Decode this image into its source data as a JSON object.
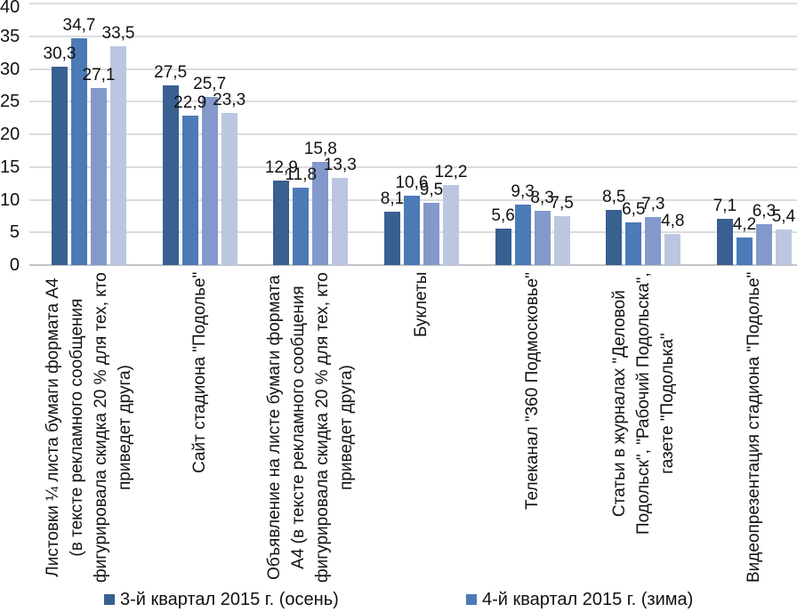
{
  "chart_data": {
    "type": "bar",
    "title": "",
    "ylim": [
      0,
      40
    ],
    "ytick_step": 5,
    "ytick_labels": [
      "0",
      "5",
      "10",
      "15",
      "20",
      "25",
      "30",
      "35",
      "40"
    ],
    "grid": true,
    "legend_position": "bottom",
    "decimal_separator": ",",
    "categories": [
      {
        "lines": [
          "Листовки ¼ листа бумаги формата А4",
          "(в тексте рекламного сообщения",
          "фигурировала скидка 20 % для тех, кто",
          "приведет друга)"
        ]
      },
      {
        "lines": [
          "Сайт стадиона \"Подолье\""
        ]
      },
      {
        "lines": [
          "Объявление на листе бумаги формата",
          "А4 (в тексте рекламного сообщения",
          "фигурировала скидка 20 % для тех, кто",
          "приведет друга)"
        ]
      },
      {
        "lines": [
          "Буклеты"
        ]
      },
      {
        "lines": [
          "Телеканал \"360 Подмосковье\""
        ]
      },
      {
        "lines": [
          "Статьи в журналах \"Деловой",
          "Подольск\", \"Рабочий Подольска\",",
          "газете \"Подолька\""
        ]
      },
      {
        "lines": [
          "Видеопрезентация стадиона \"Подолье\""
        ]
      }
    ],
    "series": [
      {
        "name": "3-й квартал 2015 г. (осень)",
        "color": "#386091",
        "values": [
          30.3,
          27.5,
          12.9,
          8.1,
          5.6,
          8.5,
          7.1
        ],
        "value_labels": [
          "30,3",
          "27,5",
          "12,9",
          "8,1",
          "5,6",
          "8,5",
          "7,1"
        ]
      },
      {
        "name": "4-й квартал 2015 г. (зима)",
        "color": "#4B7AB6",
        "values": [
          34.7,
          22.9,
          11.8,
          10.6,
          9.3,
          6.5,
          4.2
        ],
        "value_labels": [
          "34,7",
          "22,9",
          "11,8",
          "10,6",
          "9,3",
          "6,5",
          "4,2"
        ]
      },
      {
        "name": "",
        "color": "#8399CB",
        "values": [
          27.1,
          25.7,
          15.8,
          9.5,
          8.3,
          7.3,
          6.3
        ],
        "value_labels": [
          "27,1",
          "25,7",
          "15,8",
          "9,5",
          "8,3",
          "7,3",
          "6,3"
        ]
      },
      {
        "name": "",
        "color": "#BBC7E0",
        "values": [
          33.5,
          23.3,
          13.3,
          12.2,
          7.5,
          4.8,
          5.4
        ],
        "value_labels": [
          "33,5",
          "23,3",
          "13,3",
          "12,2",
          "7,5",
          "4,8",
          "5,4"
        ]
      }
    ],
    "legend": {
      "entries": [
        {
          "label": "3-й квартал 2015 г. (осень)",
          "color": "#386091"
        },
        {
          "label": "4-й квартал 2015 г. (зима)",
          "color": "#4B7AB6"
        }
      ]
    }
  }
}
